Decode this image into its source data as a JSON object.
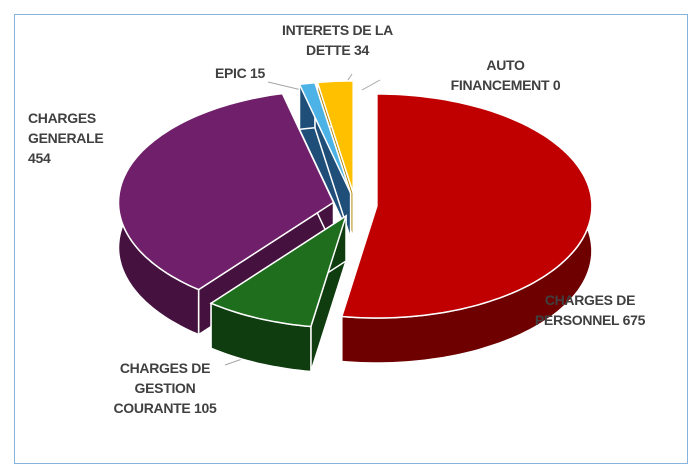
{
  "chart_data": {
    "type": "pie3d",
    "categories": [
      "CHARGES DE PERSONNEL",
      "CHARGES DE GESTION COURANTE",
      "CHARGES GENERALE",
      "EPIC",
      "INTERETS DE LA DETTE",
      "AUTO FINANCEMENT"
    ],
    "values": [
      675,
      105,
      454,
      15,
      34,
      0
    ],
    "colors": [
      "#c00000",
      "#1e6e1e",
      "#70206a",
      "#4db3e6",
      "#ffc000",
      "#7f7f7f"
    ],
    "side_colors": [
      "#6e0000",
      "#0f3d0f",
      "#45123f",
      "#1f4e79",
      "#b58500",
      "#4a4a4a"
    ]
  }
}
